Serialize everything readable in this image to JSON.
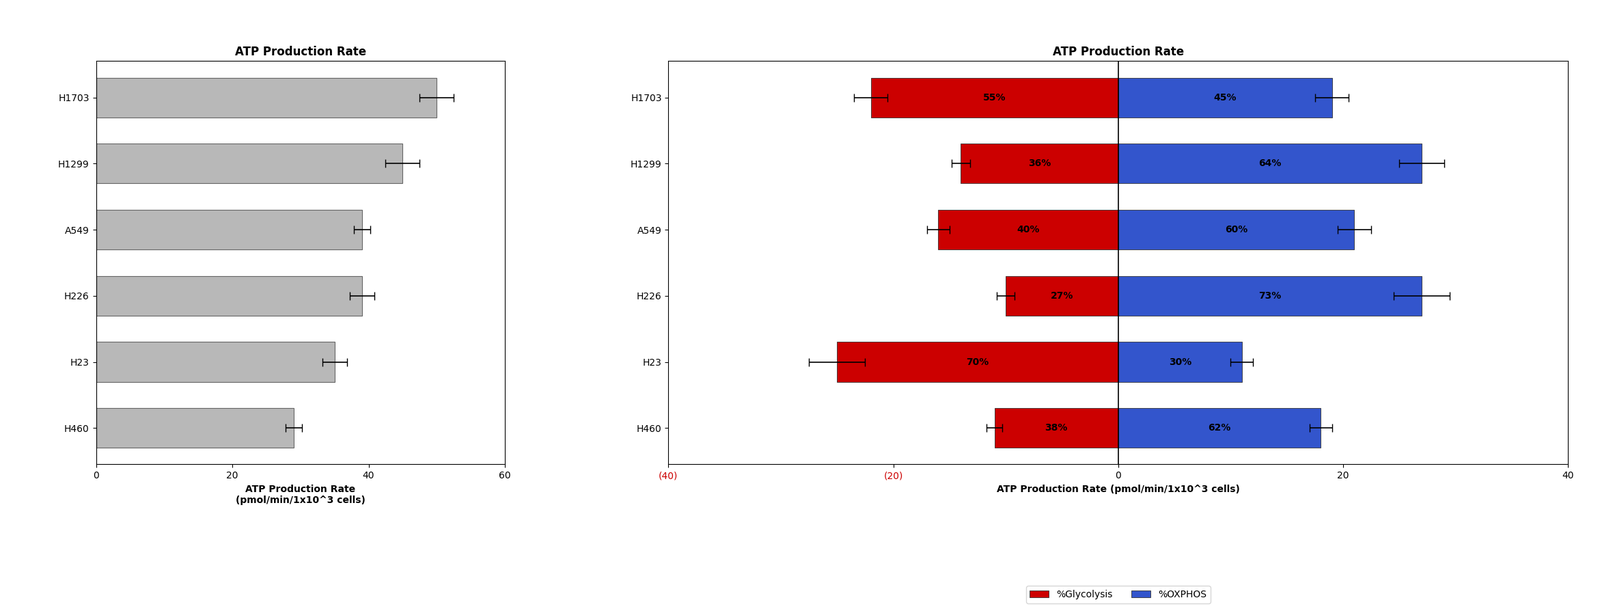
{
  "chart_data": [
    {
      "type": "bar",
      "orientation": "horizontal",
      "title": "ATP Production Rate",
      "x_label": "ATP Production Rate\n(pmol/min/1x10^3 cells)",
      "categories": [
        "H1703",
        "H1299",
        "A549",
        "H226",
        "H23",
        "H460"
      ],
      "values": [
        50,
        45,
        39,
        39,
        35,
        29
      ],
      "errors": [
        2.5,
        2.5,
        1.2,
        1.8,
        1.8,
        1.2
      ],
      "color": "#b8b8b8",
      "xlim": [
        0,
        60
      ],
      "xticks": [
        0,
        20,
        40,
        60
      ]
    },
    {
      "type": "bar",
      "orientation": "horizontal",
      "title": "ATP Production Rate",
      "x_label": "ATP Production Rate (pmol/min/1x10^3 cells)",
      "categories": [
        "H1703",
        "H1299",
        "A549",
        "H226",
        "H23",
        "H460"
      ],
      "series": [
        {
          "name": "%Glycolysis",
          "color": "#cc0000",
          "values": [
            -22,
            -14,
            -16,
            -10,
            -25,
            -11
          ],
          "errors": [
            1.5,
            0.8,
            1.0,
            0.8,
            2.5,
            0.7
          ],
          "share_labels": [
            "55%",
            "36%",
            "40%",
            "27%",
            "70%",
            "38%"
          ]
        },
        {
          "name": "%OXPHOS",
          "color": "#3355cc",
          "values": [
            19,
            27,
            21,
            27,
            11,
            18
          ],
          "errors": [
            1.5,
            2.0,
            1.5,
            2.5,
            1.0,
            1.0
          ],
          "share_labels": [
            "45%",
            "64%",
            "60%",
            "73%",
            "30%",
            "62%"
          ]
        }
      ],
      "xlim": [
        -40,
        40
      ],
      "xticks": [
        {
          "value": -40,
          "label": "(40)"
        },
        {
          "value": -20,
          "label": "(20)"
        },
        0,
        20,
        40
      ],
      "legend": "lower center"
    }
  ]
}
